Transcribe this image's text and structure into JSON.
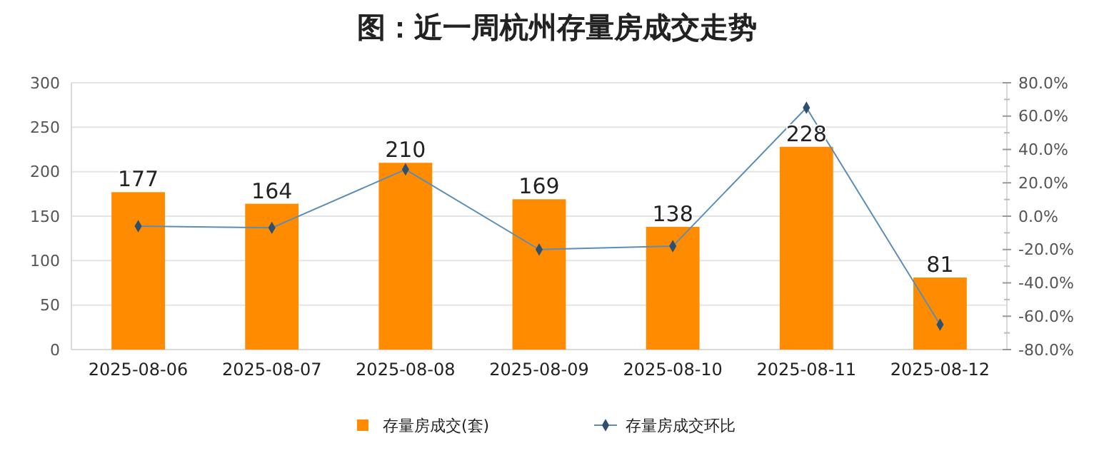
{
  "chart_data": {
    "type": "bar",
    "title": "图：近一周杭州存量房成交走势",
    "categories": [
      "2025-08-06",
      "2025-08-07",
      "2025-08-08",
      "2025-08-09",
      "2025-08-10",
      "2025-08-11",
      "2025-08-12"
    ],
    "series": [
      {
        "name": "存量房成交(套)",
        "color": "#ff8c00",
        "values": [
          177,
          164,
          210,
          169,
          138,
          228,
          81
        ],
        "value_labels": [
          "177",
          "164",
          "210",
          "169",
          "138",
          "228",
          "81"
        ]
      },
      {
        "name": "存量房成交环比",
        "type": "line",
        "axis": "y2",
        "color": "#5b8db8",
        "marker": "diamond",
        "values": [
          -6,
          -7,
          28,
          -20,
          -18,
          65,
          -65
        ]
      }
    ],
    "ylim": [
      0,
      300
    ],
    "yticks": [
      0,
      50,
      100,
      150,
      200,
      250,
      300
    ],
    "y2lim": [
      -80,
      80
    ],
    "y2ticks": [
      {
        "value": -80,
        "label": "-80.0%"
      },
      {
        "value": -60,
        "label": "-60.0%"
      },
      {
        "value": -40,
        "label": "-40.0%"
      },
      {
        "value": -20,
        "label": "-20.0%"
      },
      {
        "value": 0,
        "label": "0.0%"
      },
      {
        "value": 20,
        "label": "20.0%"
      },
      {
        "value": 40,
        "label": "40.0%"
      },
      {
        "value": 60,
        "label": "60.0%"
      },
      {
        "value": 80,
        "label": "80.0%"
      }
    ],
    "grid": "y",
    "legend": "bottom"
  }
}
